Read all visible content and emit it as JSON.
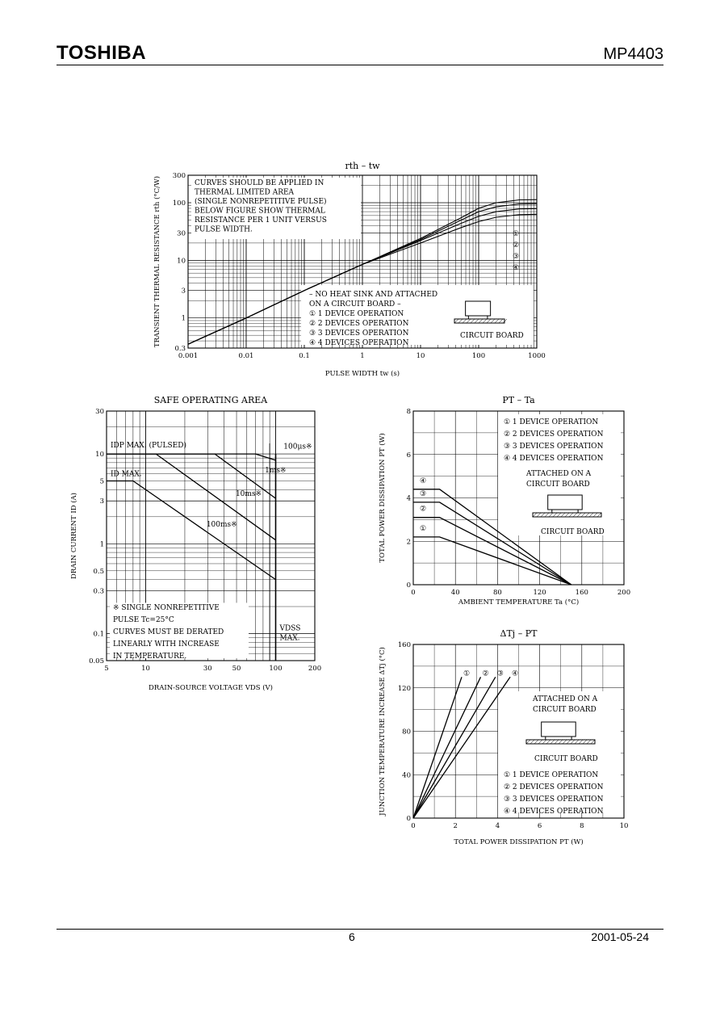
{
  "header": {
    "brand": "TOSHIBA",
    "part": "MP4403"
  },
  "footer": {
    "page": "6",
    "date": "2001-05-24"
  },
  "chart_data": [
    {
      "id": "rth",
      "type": "line",
      "title": "rth – tw",
      "xlabel": "PULSE WIDTH  tw  (s)",
      "ylabel": "TRANSIENT THERMAL RESISTANCE  rth  (°C/W)",
      "xscale": "log",
      "yscale": "log",
      "xlim": [
        0.001,
        1000
      ],
      "ylim": [
        0.3,
        300
      ],
      "x_ticks": [
        "0.001",
        "0.01",
        "0.1",
        "1",
        "10",
        "100",
        "1000"
      ],
      "y_ticks": [
        "0.3",
        "1",
        "3",
        "10",
        "30",
        "100",
        "300"
      ],
      "x_tick_values": [
        0.001,
        0.01,
        0.1,
        1,
        10,
        100,
        1000
      ],
      "y_tick_values": [
        0.3,
        1,
        3,
        10,
        30,
        100,
        300
      ],
      "notes": [
        "CURVES SHOULD BE APPLIED IN",
        "THERMAL LIMITED AREA",
        "(SINGLE NONREPETITIVE PULSE)",
        "BELOW FIGURE SHOW THERMAL",
        "RESISTANCE PER 1 UNIT VERSUS",
        "PULSE WIDTH."
      ],
      "legend_title": [
        "– NO HEAT SINK AND ATTACHED",
        "ON A CIRCUIT BOARD –"
      ],
      "legend": [
        "①  1 DEVICE OPERATION",
        "②  2 DEVICES OPERATION",
        "③  3 DEVICES OPERATION",
        "④  4 DEVICES OPERATION"
      ],
      "markers": [
        "①",
        "②",
        "③",
        "④"
      ],
      "board_label": "CIRCUIT BOARD",
      "series": [
        {
          "name": "①",
          "x": [
            0.001,
            0.01,
            0.1,
            1,
            10,
            50,
            100,
            200,
            500,
            1000
          ],
          "y": [
            0.35,
            1.0,
            3.0,
            8.5,
            24,
            55,
            80,
            100,
            112,
            113
          ]
        },
        {
          "name": "②",
          "x": [
            0.001,
            0.01,
            0.1,
            1,
            10,
            50,
            100,
            200,
            500,
            1000
          ],
          "y": [
            0.35,
            1.0,
            3.0,
            8.5,
            23,
            50,
            70,
            85,
            95,
            96
          ]
        },
        {
          "name": "③",
          "x": [
            0.001,
            0.01,
            0.1,
            1,
            10,
            50,
            100,
            200,
            500,
            1000
          ],
          "y": [
            0.35,
            1.0,
            3.0,
            8.5,
            22,
            44,
            58,
            70,
            78,
            79
          ]
        },
        {
          "name": "④",
          "x": [
            0.001,
            0.01,
            0.1,
            1,
            10,
            50,
            100,
            200,
            500,
            1000
          ],
          "y": [
            0.35,
            1.0,
            3.0,
            8.5,
            20,
            37,
            47,
            56,
            62,
            63
          ]
        }
      ]
    },
    {
      "id": "soa",
      "type": "line",
      "title": "SAFE OPERATING AREA",
      "xlabel": "DRAIN-SOURCE VOLTAGE  VDS  (V)",
      "ylabel": "DRAIN CURRENT  ID  (A)",
      "xscale": "log",
      "yscale": "log",
      "xlim": [
        5,
        200
      ],
      "ylim": [
        0.05,
        30
      ],
      "x_ticks": [
        "5",
        "10",
        "30",
        "50",
        "100",
        "200"
      ],
      "y_ticks": [
        "0.05",
        "0.1",
        "0.3",
        "0.5",
        "1",
        "3",
        "5",
        "10",
        "30"
      ],
      "x_tick_values": [
        5,
        10,
        30,
        50,
        100,
        200
      ],
      "y_tick_values": [
        0.05,
        0.1,
        0.3,
        0.5,
        1,
        3,
        5,
        10,
        30
      ],
      "labels": {
        "idp": "IDP MAX. (PULSED)",
        "id": "ID MAX.",
        "vdss": [
          "VDSS",
          "MAX."
        ]
      },
      "notes": [
        "※  SINGLE NONREPETITIVE",
        "PULSE  Tc=25°C",
        "CURVES MUST BE DERATED",
        "LINEARLY WITH INCREASE",
        "IN TEMPERATURE."
      ],
      "series": [
        {
          "name": "100μs※",
          "x": [
            5,
            70,
            100
          ],
          "y": [
            10,
            10,
            8.5
          ]
        },
        {
          "name": "1ms※",
          "x": [
            5,
            34,
            100
          ],
          "y": [
            10,
            10,
            3.2
          ]
        },
        {
          "name": "10ms※",
          "x": [
            5,
            12,
            100
          ],
          "y": [
            10,
            10,
            1.1
          ]
        },
        {
          "name": "100ms※",
          "x": [
            5,
            8,
            100
          ],
          "y": [
            5,
            5,
            0.4
          ]
        }
      ]
    },
    {
      "id": "pt",
      "type": "line",
      "title": "PT – Ta",
      "xlabel": "AMBIENT TEMPERATURE  Ta  (°C)",
      "ylabel": "TOTAL POWER DISSIPATION  PT  (W)",
      "xlim": [
        0,
        200
      ],
      "ylim": [
        0,
        8
      ],
      "x_ticks": [
        "0",
        "40",
        "80",
        "120",
        "160",
        "200"
      ],
      "y_ticks": [
        "0",
        "2",
        "4",
        "6",
        "8"
      ],
      "x_tick_values": [
        0,
        40,
        80,
        120,
        160,
        200
      ],
      "y_tick_values": [
        0,
        2,
        4,
        6,
        8
      ],
      "legend": [
        "①  1 DEVICE OPERATION",
        "②  2 DEVICES OPERATION",
        "③  3 DEVICES OPERATION",
        "④  4 DEVICES OPERATION"
      ],
      "attached": [
        "ATTACHED ON A",
        "CIRCUIT BOARD"
      ],
      "board_label": "CIRCUIT BOARD",
      "series": [
        {
          "name": "④",
          "x": [
            0,
            25,
            150
          ],
          "y": [
            4.4,
            4.4,
            0
          ]
        },
        {
          "name": "③",
          "x": [
            0,
            25,
            150
          ],
          "y": [
            3.8,
            3.8,
            0
          ]
        },
        {
          "name": "②",
          "x": [
            0,
            25,
            150
          ],
          "y": [
            3.1,
            3.1,
            0
          ]
        },
        {
          "name": "①",
          "x": [
            0,
            25,
            150
          ],
          "y": [
            2.2,
            2.2,
            0
          ]
        }
      ]
    },
    {
      "id": "dtj",
      "type": "line",
      "title": "ΔTj – PT",
      "xlabel": "TOTAL POWER DISSIPATION  PT  (W)",
      "ylabel": "JUNCTION TEMPERATURE INCREASE  ΔTj  (°C)",
      "xlim": [
        0,
        10
      ],
      "ylim": [
        0,
        160
      ],
      "x_ticks": [
        "0",
        "2",
        "4",
        "6",
        "8",
        "10"
      ],
      "y_ticks": [
        "0",
        "40",
        "80",
        "120",
        "160"
      ],
      "x_tick_values": [
        0,
        2,
        4,
        6,
        8,
        10
      ],
      "y_tick_values": [
        0,
        40,
        80,
        120,
        160
      ],
      "legend": [
        "①  1 DEVICE OPERATION",
        "②  2 DEVICES OPERATION",
        "③  3 DEVICES OPERATION",
        "④  4 DEVICES OPERATION"
      ],
      "attached": [
        "ATTACHED ON A",
        "CIRCUIT BOARD"
      ],
      "board_label": "CIRCUIT BOARD",
      "series": [
        {
          "name": "①",
          "x": [
            0,
            2.3
          ],
          "y": [
            0,
            130
          ]
        },
        {
          "name": "②",
          "x": [
            0,
            3.2
          ],
          "y": [
            0,
            130
          ]
        },
        {
          "name": "③",
          "x": [
            0,
            3.9
          ],
          "y": [
            0,
            130
          ]
        },
        {
          "name": "④",
          "x": [
            0,
            4.6
          ],
          "y": [
            0,
            130
          ]
        }
      ]
    }
  ]
}
